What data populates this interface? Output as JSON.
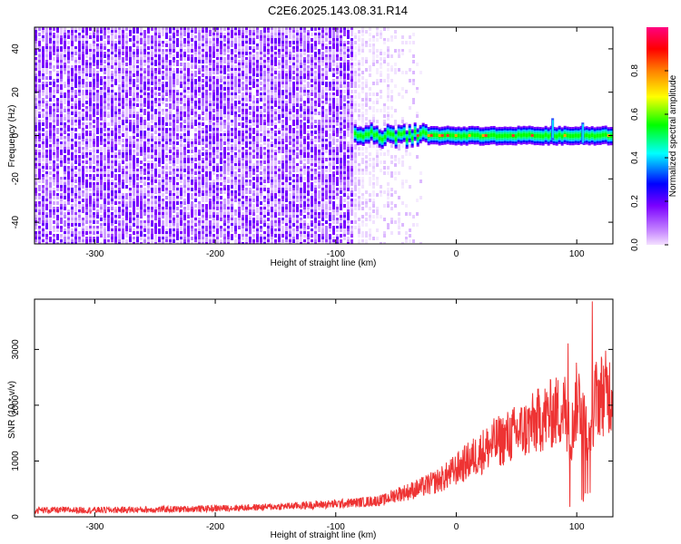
{
  "figure": {
    "title": "C2E6.2025.143.08.31.R14"
  },
  "chart_data": [
    {
      "type": "heatmap",
      "xlabel": "Height of straight line (km)",
      "ylabel": "Frequency (Hz)",
      "xlim": [
        -350,
        130
      ],
      "ylim": [
        -50,
        50
      ],
      "xticks": [
        -300,
        -200,
        -100,
        0,
        100
      ],
      "yticks": [
        -40,
        -20,
        0,
        20,
        40
      ],
      "colorbar": {
        "label": "Normalized spectral amplitude",
        "range": [
          0,
          1
        ],
        "ticks": [
          0.0,
          0.2,
          0.4,
          0.6,
          0.8
        ],
        "colors": [
          "#f4e0ff",
          "#9400ff",
          "#0000ff",
          "#00ffff",
          "#00ff00",
          "#ffff00",
          "#ff8000",
          "#ff0000",
          "#ff0080"
        ]
      },
      "regions": [
        {
          "x": [
            -350,
            -85
          ],
          "freq": [
            -50,
            50
          ],
          "amplitude": 0.1
        },
        {
          "x": [
            -85,
            -30
          ],
          "freq": [
            -50,
            50
          ],
          "amplitude": 0.03
        },
        {
          "x": [
            -85,
            130
          ],
          "freq": [
            -3,
            3
          ],
          "amplitude": 0.6
        }
      ],
      "tone_events": [
        {
          "x": 80,
          "freq": [
            -2,
            8
          ]
        },
        {
          "x": 105,
          "freq": [
            -4,
            6
          ]
        }
      ]
    },
    {
      "type": "line",
      "xlabel": "Height of straight line (km)",
      "ylabel": "SNR (10 * v/v)",
      "xlim": [
        -350,
        130
      ],
      "ylim": [
        0,
        3900
      ],
      "xticks": [
        -300,
        -200,
        -100,
        0,
        100
      ],
      "yticks": [
        0,
        1000,
        2000,
        3000
      ],
      "series": [
        {
          "color": "#ee3333",
          "x": [
            -350,
            -300,
            -250,
            -200,
            -150,
            -100,
            -80,
            -60,
            -50,
            -40,
            -30,
            -20,
            -10,
            0,
            10,
            20,
            30,
            40,
            50,
            60,
            70,
            80,
            90,
            95,
            100,
            105,
            110,
            115,
            120,
            130
          ],
          "y": [
            120,
            120,
            130,
            150,
            180,
            230,
            260,
            300,
            400,
            450,
            520,
            600,
            700,
            850,
            1000,
            1150,
            1300,
            1400,
            1500,
            1600,
            1750,
            1850,
            1950,
            1400,
            2100,
            2050,
            1300,
            2100,
            2200,
            2250
          ]
        }
      ]
    }
  ]
}
